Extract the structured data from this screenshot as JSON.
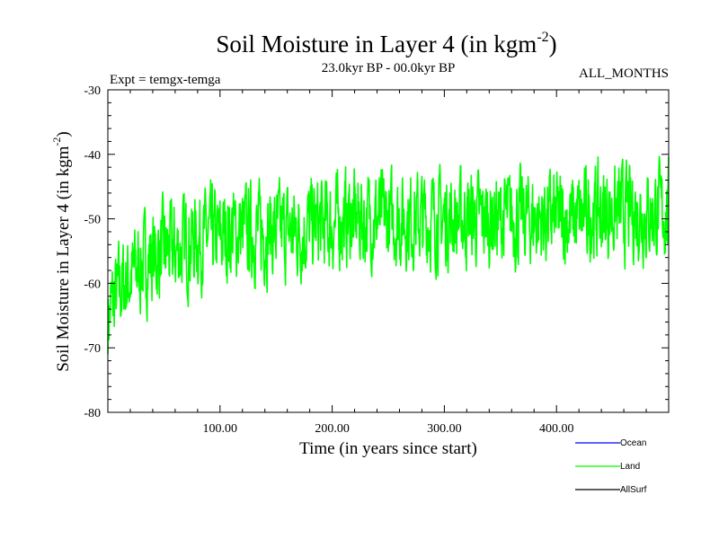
{
  "chart_data": {
    "type": "line",
    "title": "Soil Moisture in Layer 4 (in kgm",
    "title_superscript": "-2",
    "title_suffix": ")",
    "subtitle_left": "Expt = temgx-temga",
    "subtitle_center": "23.0kyr BP - 00.0kyr BP",
    "subtitle_right": "ALL_MONTHS",
    "xlabel": "Time (in years since start)",
    "ylabel": "Soil Moisture in Layer 4 (in kgm",
    "ylabel_superscript": "-2",
    "ylabel_suffix": ")",
    "xlim": [
      0,
      500
    ],
    "ylim": [
      -80,
      -30
    ],
    "x_ticks": [
      100,
      200,
      300,
      400
    ],
    "x_tick_labels": [
      "100.00",
      "200.00",
      "300.00",
      "400.00"
    ],
    "y_ticks": [
      -30,
      -40,
      -50,
      -60,
      -70,
      -80
    ],
    "y_tick_labels": [
      "-30",
      "-40",
      "-50",
      "-60",
      "-70",
      "-80"
    ],
    "legend": [
      {
        "name": "Ocean",
        "color": "#0000ff"
      },
      {
        "name": "Land",
        "color": "#00ff00"
      },
      {
        "name": "AllSurf",
        "color": "#000000"
      }
    ],
    "series": [
      {
        "name": "Land",
        "color": "#00ff00",
        "x": [
          0,
          10,
          20,
          30,
          40,
          50,
          60,
          70,
          80,
          90,
          100,
          110,
          120,
          130,
          140,
          150,
          160,
          170,
          180,
          190,
          200,
          210,
          220,
          230,
          240,
          250,
          260,
          270,
          280,
          290,
          300,
          310,
          320,
          330,
          340,
          350,
          360,
          370,
          380,
          390,
          400,
          410,
          420,
          430,
          440,
          450,
          460,
          470,
          480,
          490,
          500
        ],
        "y": [
          -65,
          -61,
          -59,
          -57,
          -56,
          -55,
          -55,
          -54,
          -53,
          -53,
          -53,
          -52,
          -52,
          -52,
          -52,
          -52,
          -52,
          -52,
          -51,
          -51,
          -51,
          -50,
          -50,
          -50,
          -50,
          -50,
          -50,
          -50,
          -50,
          -50,
          -50,
          -50,
          -50,
          -50,
          -50,
          -50,
          -50,
          -50,
          -50,
          -50,
          -50,
          -50,
          -50,
          -49,
          -49,
          -49,
          -49,
          -49,
          -49,
          -49,
          -49
        ],
        "amplitude": [
          5,
          5,
          5,
          5,
          5,
          5,
          5,
          5,
          5,
          5,
          5,
          5,
          5,
          5,
          5,
          5,
          5,
          5,
          5,
          5,
          5,
          5,
          5,
          5,
          5,
          5,
          5,
          5,
          5,
          5,
          5,
          5,
          5,
          5,
          5,
          5,
          5,
          5,
          5,
          5,
          5,
          5,
          5,
          5,
          5,
          5,
          5,
          5,
          5,
          5,
          5
        ],
        "note": "high-frequency noisy series; values are the running centre of the band with +/- amplitude"
      }
    ]
  }
}
